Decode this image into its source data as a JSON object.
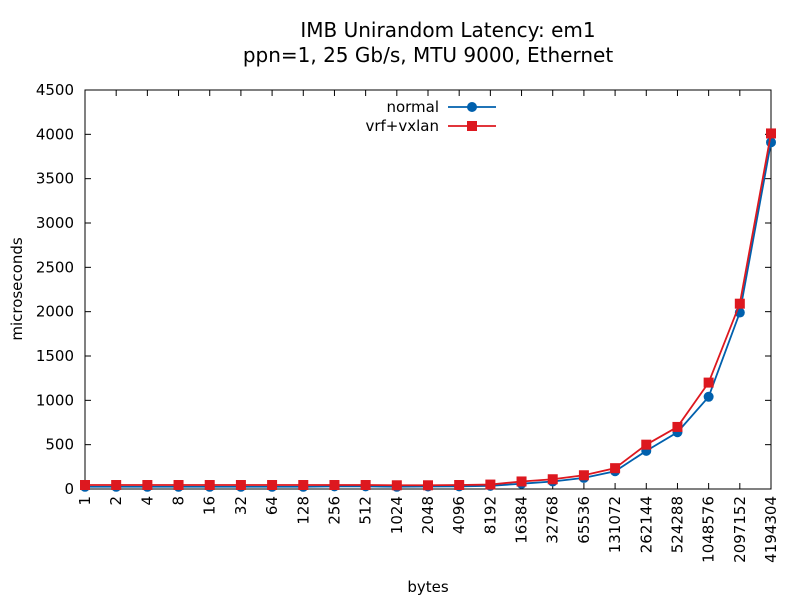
{
  "chart_data": {
    "type": "line",
    "title": "IMB Unirandom Latency: em1",
    "subtitle": "ppn=1, 25 Gb/s, MTU 9000, Ethernet",
    "xlabel": "bytes",
    "ylabel": "microseconds",
    "ylim": [
      0,
      4500
    ],
    "yticks": [
      0,
      500,
      1000,
      1500,
      2000,
      2500,
      3000,
      3500,
      4000,
      4500
    ],
    "categories": [
      "1",
      "2",
      "4",
      "8",
      "16",
      "32",
      "64",
      "128",
      "256",
      "512",
      "1024",
      "2048",
      "4096",
      "8192",
      "16384",
      "32768",
      "65536",
      "131072",
      "262144",
      "524288",
      "1048576",
      "2097152",
      "4194304"
    ],
    "grid": false,
    "legend_position": "top-center",
    "series": [
      {
        "name": "normal",
        "color": "#0060ad",
        "marker": "circle",
        "values": [
          25,
          25,
          25,
          25,
          25,
          25,
          25,
          25,
          30,
          30,
          25,
          28,
          30,
          35,
          60,
          85,
          125,
          200,
          430,
          640,
          1040,
          1990,
          3910
        ]
      },
      {
        "name": "vrf+vxlan",
        "color": "#dd181f",
        "marker": "square",
        "values": [
          45,
          45,
          45,
          45,
          45,
          45,
          45,
          45,
          45,
          45,
          42,
          42,
          45,
          50,
          85,
          110,
          155,
          235,
          500,
          700,
          1200,
          2090,
          4010
        ]
      }
    ]
  }
}
